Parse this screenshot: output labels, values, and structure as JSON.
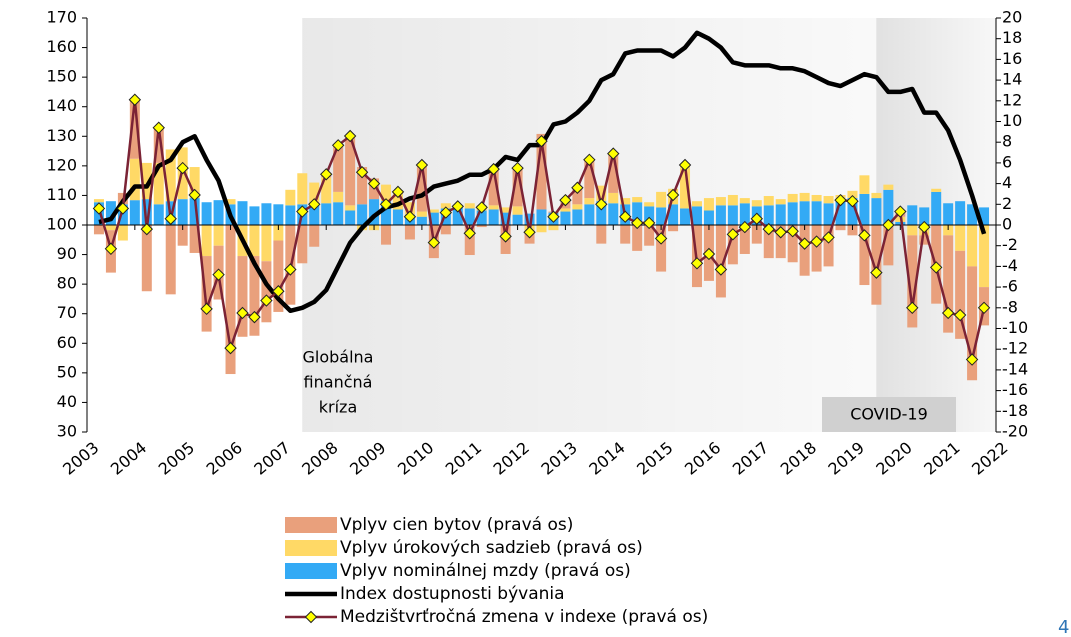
{
  "chart_data": {
    "type": "combo",
    "x": [
      2003.25,
      2003.5,
      2003.75,
      2004,
      2004.25,
      2004.5,
      2004.75,
      2005,
      2005.25,
      2005.5,
      2005.75,
      2006,
      2006.25,
      2006.5,
      2006.75,
      2007,
      2007.25,
      2007.5,
      2007.75,
      2008,
      2008.25,
      2008.5,
      2008.75,
      2009,
      2009.25,
      2009.5,
      2009.75,
      2010,
      2010.25,
      2010.5,
      2010.75,
      2011,
      2011.25,
      2011.5,
      2011.75,
      2012,
      2012.25,
      2012.5,
      2012.75,
      2013,
      2013.25,
      2013.5,
      2013.75,
      2014,
      2014.25,
      2014.5,
      2014.75,
      2015,
      2015.25,
      2015.5,
      2015.75,
      2016,
      2016.25,
      2016.5,
      2016.75,
      2017,
      2017.25,
      2017.5,
      2017.75,
      2018,
      2018.25,
      2018.5,
      2018.75,
      2019,
      2019.25,
      2019.5,
      2019.75,
      2020,
      2020.25,
      2020.5,
      2020.75,
      2021,
      2021.25,
      2021.5,
      2021.75
    ],
    "xlim": [
      2003,
      2022
    ],
    "xticks": [
      2003,
      2004,
      2005,
      2006,
      2007,
      2008,
      2009,
      2010,
      2011,
      2012,
      2013,
      2014,
      2015,
      2016,
      2017,
      2018,
      2019,
      2020,
      2021,
      2022
    ],
    "ylim": [
      30,
      170
    ],
    "yticks": [
      30,
      40,
      50,
      60,
      70,
      80,
      90,
      100,
      110,
      120,
      130,
      140,
      150,
      160,
      170
    ],
    "y2lim": [
      -20,
      20
    ],
    "y2ticks": [
      -20,
      -18,
      -16,
      -14,
      -12,
      -10,
      -8,
      -6,
      -4,
      -2,
      0,
      2,
      4,
      6,
      8,
      10,
      12,
      14,
      16,
      18,
      20
    ],
    "series": [
      {
        "name": "Vplyv cien bytov (pravá os)",
        "type": "bar",
        "axis": "y2",
        "color": "#E9A07C",
        "values": [
          -0.9,
          -4.1,
          1.1,
          5.7,
          -6.4,
          3.4,
          -6.7,
          -2.0,
          -2.7,
          -7.3,
          -5.2,
          -14.4,
          -7.8,
          -7.7,
          -5.9,
          -6.9,
          -7.7,
          -3.7,
          -2.1,
          0.3,
          4.5,
          6.7,
          3.6,
          2.0,
          -1.9,
          0.2,
          -1.4,
          4.5,
          -3.2,
          -0.9,
          0.0,
          -2.9,
          -0.2,
          3.5,
          -2.8,
          3.7,
          -1.0,
          7.3,
          0.1,
          0.8,
          1.6,
          3.7,
          -1.8,
          3.8,
          -1.8,
          -2.5,
          -2.0,
          -4.5,
          -0.6,
          0.2,
          -6.0,
          -5.4,
          -7.0,
          -3.8,
          -2.8,
          -1.8,
          -3.2,
          -3.2,
          -3.6,
          -4.9,
          -4.5,
          -4.0,
          -0.5,
          -1.0,
          -5.8,
          -7.7,
          -3.9,
          0.5,
          -8.9,
          -0.9,
          -7.6,
          -9.4,
          -8.5,
          -11.0,
          -3.7
        ]
      },
      {
        "name": "Vplyv úrokových sadzieb (pravá os)",
        "type": "bar",
        "axis": "y2",
        "color": "#FFD966",
        "values": [
          0.3,
          -0.5,
          -1.5,
          4.0,
          3.5,
          4.0,
          5.0,
          5.0,
          3.0,
          -3.0,
          -2.0,
          0.5,
          -3.0,
          -3.0,
          -3.5,
          -1.5,
          1.5,
          3.0,
          2.0,
          2.5,
          1.0,
          0.5,
          -0.5,
          -0.5,
          1.6,
          1.5,
          1.2,
          0.5,
          0.3,
          0.5,
          0.0,
          0.5,
          0.5,
          0.4,
          0.5,
          0.8,
          -0.8,
          -0.7,
          -0.5,
          0.3,
          0.5,
          0.6,
          1.5,
          1.0,
          0.6,
          0.5,
          0.4,
          1.5,
          1.5,
          4.0,
          0.5,
          1.2,
          0.8,
          1.0,
          0.5,
          0.6,
          0.9,
          0.5,
          0.8,
          0.8,
          0.6,
          0.7,
          0.6,
          0.7,
          1.8,
          0.5,
          0.5,
          0.5,
          -1.0,
          -1.0,
          0.3,
          -1.0,
          -2.5,
          -4.0,
          -6.0
        ]
      },
      {
        "name": "Vplyv nominálnej mzdy (pravá os)",
        "type": "bar",
        "axis": "y2",
        "color": "#33AAF5",
        "values": [
          2.2,
          2.3,
          2.0,
          2.4,
          2.5,
          2.0,
          2.3,
          2.5,
          2.6,
          2.2,
          2.4,
          2.0,
          2.3,
          1.8,
          2.1,
          2.0,
          1.9,
          2.0,
          2.1,
          2.1,
          2.2,
          1.4,
          2.0,
          2.5,
          2.3,
          1.5,
          1.0,
          0.8,
          1.2,
          1.6,
          1.8,
          1.6,
          1.4,
          1.5,
          1.2,
          1.0,
          1.1,
          1.5,
          1.2,
          1.3,
          1.5,
          2.0,
          2.3,
          2.1,
          2.0,
          2.2,
          1.8,
          1.7,
          2.0,
          1.6,
          1.8,
          1.4,
          1.9,
          1.9,
          2.1,
          1.8,
          1.9,
          2.0,
          2.2,
          2.3,
          2.3,
          2.1,
          2.3,
          2.6,
          3.0,
          2.6,
          3.4,
          0.3,
          1.9,
          1.7,
          3.2,
          2.1,
          2.3,
          2.0,
          1.7
        ]
      },
      {
        "name": "Index dostupnosti bývania",
        "type": "line",
        "axis": "y",
        "color": "#000000",
        "values": [
          101,
          102,
          108,
          113,
          113,
          120,
          122,
          128,
          130,
          122,
          115,
          103,
          95,
          87,
          80,
          75,
          71,
          72,
          74,
          78,
          86,
          94,
          99,
          103,
          106,
          107,
          109,
          110,
          113,
          114,
          115,
          117,
          117,
          119,
          123,
          122,
          127,
          127,
          134,
          135,
          138,
          142,
          149,
          151,
          158,
          159,
          159,
          159,
          157,
          160,
          165,
          163,
          160,
          155,
          154,
          154,
          154,
          153,
          153,
          152,
          150,
          148,
          147,
          149,
          151,
          150,
          145,
          145,
          146,
          138,
          138,
          132,
          122,
          110,
          97
        ]
      },
      {
        "name": "Medzištvrťročná zmena v indexe (pravá os)",
        "type": "line-marker",
        "axis": "y2",
        "color": "#7B2335",
        "marker_color": "#FFFF00",
        "values": [
          1.6,
          -2.3,
          1.6,
          12.1,
          -0.4,
          9.4,
          0.6,
          5.5,
          2.9,
          -8.1,
          -4.8,
          -11.9,
          -8.5,
          -8.9,
          -7.3,
          -6.4,
          -4.3,
          1.3,
          2.0,
          4.9,
          7.7,
          8.6,
          5.1,
          4.0,
          2.0,
          3.2,
          0.8,
          5.8,
          -1.7,
          1.2,
          1.8,
          -0.8,
          1.7,
          5.4,
          -1.1,
          5.5,
          -0.7,
          8.1,
          0.8,
          2.4,
          3.6,
          6.3,
          2.0,
          6.9,
          0.8,
          0.2,
          0.2,
          -1.3,
          2.9,
          5.8,
          -3.7,
          -2.8,
          -4.3,
          -0.9,
          -0.2,
          0.6,
          -0.4,
          -0.7,
          -0.6,
          -1.8,
          -1.6,
          -1.2,
          2.4,
          2.3,
          -1.0,
          -4.6,
          0.0,
          1.3,
          -8.0,
          -0.2,
          -4.1,
          -8.5,
          -8.7,
          -13.0,
          -8.0
        ]
      }
    ],
    "shaded_regions": [
      {
        "start": 2007.5,
        "end": 2019.5,
        "color": "#E3E3E3",
        "lines": [
          "Globálna",
          "finančná",
          "kríza"
        ]
      },
      {
        "start": 2019.5,
        "end": 2022,
        "color": "#DADADA",
        "label": "COVID-19"
      }
    ]
  },
  "page_number": "4"
}
